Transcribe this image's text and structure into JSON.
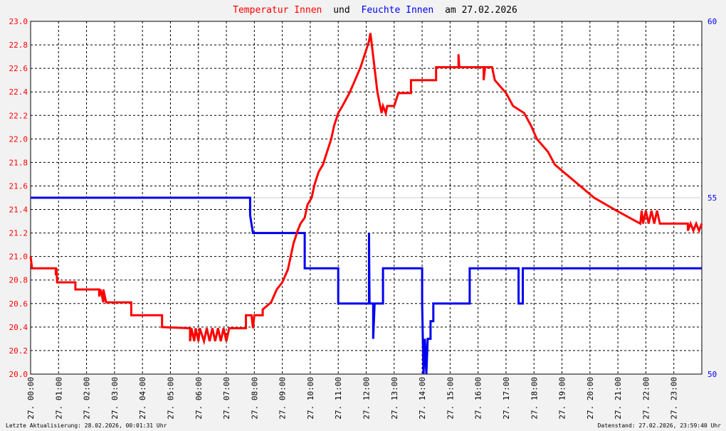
{
  "title": {
    "part1": "Temperatur Innen",
    "part2": "und",
    "part3": "Feuchte Innen",
    "part4": "am 27.02.2026"
  },
  "footer": {
    "left": "Letzte Aktualisierung: 28.02.2026, 00:01:31 Uhr",
    "right": "Datenstand: 27.02.2026, 23:59:40 Uhr"
  },
  "colors": {
    "temperature": "#ff0000",
    "humidity": "#0000ee",
    "grid": "#000000",
    "background": "#ffffff",
    "reference_line": "#cccccc"
  },
  "chart_data": {
    "type": "line",
    "title": "Temperatur Innen und Feuchte Innen am 27.02.2026",
    "grid": true,
    "x_range_hours": [
      0,
      24
    ],
    "x_tick_labels": [
      "27. 00:00",
      "27. 01:00",
      "27. 02:00",
      "27. 03:00",
      "27. 04:00",
      "27. 05:00",
      "27. 06:00",
      "27. 07:00",
      "27. 08:00",
      "27. 09:00",
      "27. 10:00",
      "27. 11:00",
      "27. 12:00",
      "27. 13:00",
      "27. 14:00",
      "27. 15:00",
      "27. 16:00",
      "27. 17:00",
      "27. 18:00",
      "27. 19:00",
      "27. 20:00",
      "27. 21:00",
      "27. 22:00",
      "27. 23:00"
    ],
    "y_left": {
      "range": [
        20.0,
        23.0
      ],
      "ticks": [
        "20.0",
        "20.2",
        "20.4",
        "20.6",
        "20.8",
        "21.0",
        "21.2",
        "21.4",
        "21.6",
        "21.8",
        "22.0",
        "22.2",
        "22.4",
        "22.6",
        "22.8",
        "23.0"
      ]
    },
    "y_right": {
      "range": [
        50,
        60
      ],
      "ticks": [
        "50",
        "55",
        "60"
      ]
    },
    "series": [
      {
        "name": "Temperatur Innen",
        "axis": "left",
        "points": [
          [
            0.0,
            21.0
          ],
          [
            0.05,
            20.9
          ],
          [
            0.9,
            20.9
          ],
          [
            0.9,
            20.84
          ],
          [
            0.93,
            20.9
          ],
          [
            0.95,
            20.78
          ],
          [
            1.6,
            20.78
          ],
          [
            1.6,
            20.72
          ],
          [
            2.0,
            20.72
          ],
          [
            2.45,
            20.72
          ],
          [
            2.45,
            20.66
          ],
          [
            2.5,
            20.72
          ],
          [
            2.6,
            20.61
          ],
          [
            2.6,
            20.72
          ],
          [
            2.7,
            20.61
          ],
          [
            3.6,
            20.61
          ],
          [
            3.6,
            20.5
          ],
          [
            4.7,
            20.5
          ],
          [
            4.7,
            20.4
          ],
          [
            5.7,
            20.39
          ],
          [
            5.7,
            20.28
          ],
          [
            5.75,
            20.39
          ],
          [
            5.85,
            20.28
          ],
          [
            5.9,
            20.39
          ],
          [
            6.0,
            20.28
          ],
          [
            6.05,
            20.39
          ],
          [
            6.2,
            20.28
          ],
          [
            6.3,
            20.39
          ],
          [
            6.4,
            20.28
          ],
          [
            6.5,
            20.39
          ],
          [
            6.6,
            20.28
          ],
          [
            6.7,
            20.39
          ],
          [
            6.8,
            20.28
          ],
          [
            6.9,
            20.39
          ],
          [
            7.0,
            20.28
          ],
          [
            7.1,
            20.39
          ],
          [
            7.2,
            20.39
          ],
          [
            7.7,
            20.39
          ],
          [
            7.7,
            20.5
          ],
          [
            7.9,
            20.5
          ],
          [
            7.95,
            20.39
          ],
          [
            8.0,
            20.5
          ],
          [
            8.1,
            20.5
          ],
          [
            8.3,
            20.5
          ],
          [
            8.3,
            20.55
          ],
          [
            8.6,
            20.61
          ],
          [
            8.8,
            20.72
          ],
          [
            9.0,
            20.78
          ],
          [
            9.2,
            20.89
          ],
          [
            9.3,
            21.0
          ],
          [
            9.4,
            21.11
          ],
          [
            9.55,
            21.22
          ],
          [
            9.65,
            21.28
          ],
          [
            9.8,
            21.33
          ],
          [
            9.9,
            21.44
          ],
          [
            10.05,
            21.5
          ],
          [
            10.15,
            21.61
          ],
          [
            10.3,
            21.72
          ],
          [
            10.45,
            21.78
          ],
          [
            10.6,
            21.89
          ],
          [
            10.75,
            22.0
          ],
          [
            10.85,
            22.11
          ],
          [
            11.0,
            22.22
          ],
          [
            11.15,
            22.28
          ],
          [
            11.4,
            22.39
          ],
          [
            11.6,
            22.5
          ],
          [
            11.8,
            22.61
          ],
          [
            11.95,
            22.72
          ],
          [
            12.1,
            22.83
          ],
          [
            12.15,
            22.9
          ],
          [
            12.2,
            22.8
          ],
          [
            12.3,
            22.6
          ],
          [
            12.4,
            22.4
          ],
          [
            12.5,
            22.28
          ],
          [
            12.55,
            22.22
          ],
          [
            12.6,
            22.28
          ],
          [
            12.7,
            22.22
          ],
          [
            12.75,
            22.28
          ],
          [
            13.0,
            22.28
          ],
          [
            13.15,
            22.39
          ],
          [
            13.6,
            22.39
          ],
          [
            13.6,
            22.5
          ],
          [
            14.5,
            22.5
          ],
          [
            14.5,
            22.61
          ],
          [
            15.3,
            22.61
          ],
          [
            15.3,
            22.72
          ],
          [
            15.33,
            22.61
          ],
          [
            16.2,
            22.61
          ],
          [
            16.2,
            22.5
          ],
          [
            16.25,
            22.61
          ],
          [
            16.5,
            22.61
          ],
          [
            16.6,
            22.5
          ],
          [
            17.0,
            22.39
          ],
          [
            17.25,
            22.28
          ],
          [
            17.65,
            22.22
          ],
          [
            17.9,
            22.11
          ],
          [
            18.1,
            22.0
          ],
          [
            18.5,
            21.89
          ],
          [
            18.75,
            21.78
          ],
          [
            19.05,
            21.72
          ],
          [
            19.6,
            21.61
          ],
          [
            20.15,
            21.5
          ],
          [
            20.95,
            21.39
          ],
          [
            21.8,
            21.28
          ],
          [
            21.85,
            21.39
          ],
          [
            21.9,
            21.28
          ],
          [
            22.0,
            21.39
          ],
          [
            22.1,
            21.28
          ],
          [
            22.2,
            21.39
          ],
          [
            22.3,
            21.28
          ],
          [
            22.4,
            21.39
          ],
          [
            22.5,
            21.28
          ],
          [
            23.5,
            21.28
          ],
          [
            23.5,
            21.22
          ],
          [
            23.6,
            21.28
          ],
          [
            23.7,
            21.22
          ],
          [
            23.8,
            21.28
          ],
          [
            23.9,
            21.22
          ],
          [
            24.0,
            21.28
          ]
        ]
      },
      {
        "name": "Feuchte Innen",
        "axis": "right",
        "points": [
          [
            0.0,
            55
          ],
          [
            7.85,
            55
          ],
          [
            7.85,
            54.5
          ],
          [
            7.95,
            54
          ],
          [
            9.8,
            54
          ],
          [
            9.8,
            53
          ],
          [
            11.0,
            53
          ],
          [
            11.0,
            52
          ],
          [
            12.1,
            52
          ],
          [
            12.1,
            54
          ],
          [
            12.12,
            52
          ],
          [
            12.25,
            52
          ],
          [
            12.25,
            51
          ],
          [
            12.3,
            52
          ],
          [
            12.6,
            52
          ],
          [
            12.6,
            53
          ],
          [
            14.0,
            53
          ],
          [
            14.0,
            52
          ],
          [
            14.05,
            50
          ],
          [
            14.1,
            51
          ],
          [
            14.15,
            50
          ],
          [
            14.2,
            51
          ],
          [
            14.3,
            51
          ],
          [
            14.3,
            51.5
          ],
          [
            14.4,
            51.5
          ],
          [
            14.4,
            52
          ],
          [
            15.7,
            52
          ],
          [
            15.7,
            53
          ],
          [
            17.45,
            53
          ],
          [
            17.45,
            52
          ],
          [
            17.6,
            52
          ],
          [
            17.6,
            53
          ],
          [
            24.0,
            53
          ]
        ]
      }
    ]
  }
}
